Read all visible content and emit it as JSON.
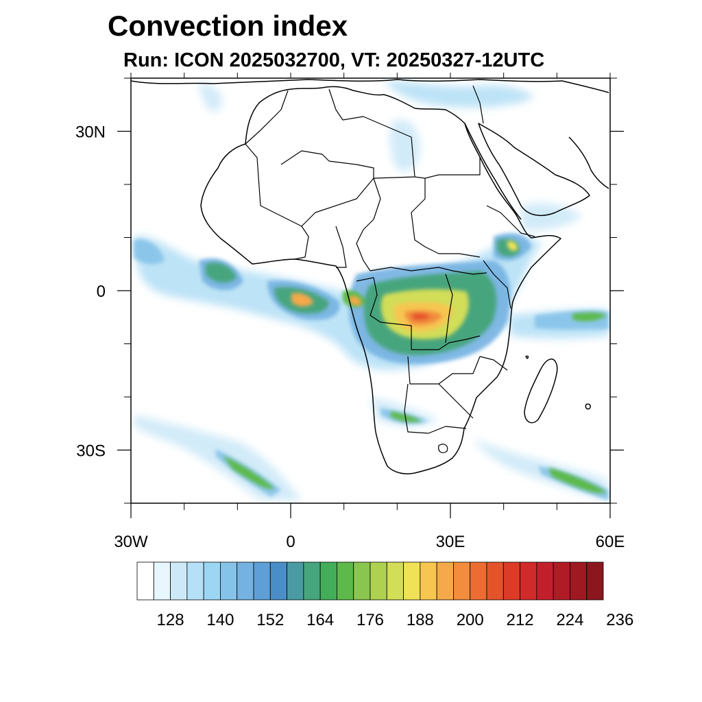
{
  "title": "Convection index",
  "subtitle": "Run: ICON 2025032700,  VT: 20250327-12UTC",
  "map": {
    "lon_range": [
      -30,
      60
    ],
    "lat_range": [
      -40,
      40
    ],
    "x_ticks": [
      {
        "lon": -30,
        "label": "30W"
      },
      {
        "lon": 0,
        "label": "0"
      },
      {
        "lon": 30,
        "label": "30E"
      },
      {
        "lon": 60,
        "label": "60E"
      }
    ],
    "y_ticks": [
      {
        "lat": 30,
        "label": "30N"
      },
      {
        "lat": 0,
        "label": "0"
      },
      {
        "lat": -30,
        "label": "30S"
      }
    ],
    "minor_tick_step_deg": 10
  },
  "colorbar": {
    "colors": [
      "#ffffff",
      "#e8f6fd",
      "#cde9f8",
      "#b6e0f6",
      "#9cd6f3",
      "#86c3e9",
      "#74b2e2",
      "#5d9fd6",
      "#4a8ec8",
      "#4a9aa3",
      "#47a57e",
      "#43ad5a",
      "#5cb94a",
      "#8ac54f",
      "#aed150",
      "#d2dd58",
      "#f0e257",
      "#f6c651",
      "#f5a94a",
      "#f18d3d",
      "#ec6d32",
      "#e5532b",
      "#dc3b28",
      "#d12a2b",
      "#c21f2c",
      "#b01b26",
      "#9e1921",
      "#8b161d"
    ],
    "labels": [
      "128",
      "140",
      "152",
      "164",
      "176",
      "188",
      "200",
      "212",
      "224",
      "236"
    ]
  }
}
